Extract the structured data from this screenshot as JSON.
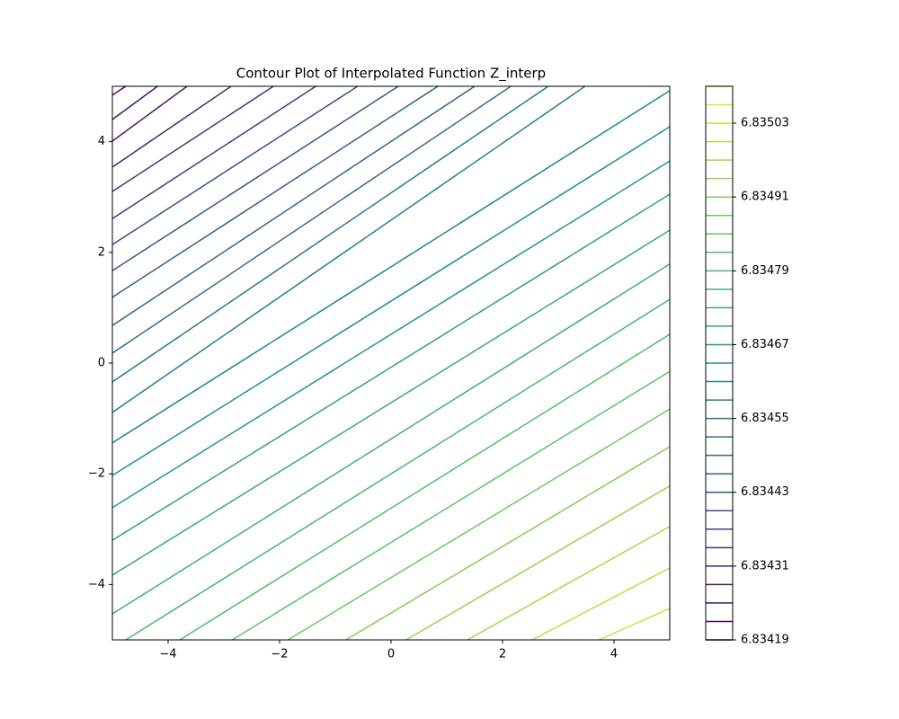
{
  "chart_data": {
    "type": "contour",
    "title": "Contour Plot of Interpolated Function Z_interp",
    "colormap": "viridis",
    "xlim": [
      -5,
      5
    ],
    "ylim": [
      -5,
      5
    ],
    "xticks": [
      {
        "value": -4,
        "label": "−4"
      },
      {
        "value": -2,
        "label": "−2"
      },
      0,
      2,
      4
    ],
    "yticks": [
      {
        "value": -4,
        "label": "−4"
      },
      {
        "value": -2,
        "label": "−2"
      },
      0,
      2,
      4
    ],
    "levels": [
      6.83419,
      6.83422,
      6.83425,
      6.83428,
      6.83431,
      6.83434,
      6.83437,
      6.8344,
      6.83443,
      6.83446,
      6.83449,
      6.83452,
      6.83455,
      6.83458,
      6.83461,
      6.83464,
      6.83467,
      6.8347,
      6.83473,
      6.83476,
      6.83479,
      6.83482,
      6.83485,
      6.83488,
      6.83491,
      6.83494,
      6.83497,
      6.835,
      6.83503,
      6.83506,
      6.83509
    ],
    "lines": [
      null,
      {
        "x": [
          -5,
          -4.76
        ],
        "y": [
          4.84,
          5
        ]
      },
      {
        "x": [
          -5,
          -4.19
        ],
        "y": [
          4.4,
          5
        ]
      },
      {
        "x": [
          -5,
          -3.66
        ],
        "y": [
          4.01,
          5
        ]
      },
      {
        "x": [
          -5,
          -2.87
        ],
        "y": [
          3.54,
          5
        ]
      },
      {
        "x": [
          -5,
          -2.11
        ],
        "y": [
          3.1,
          5
        ]
      },
      {
        "x": [
          -5,
          -1.35
        ],
        "y": [
          2.61,
          5
        ]
      },
      {
        "x": [
          -5,
          -0.6
        ],
        "y": [
          2.14,
          5
        ]
      },
      {
        "x": [
          -5,
          0.13
        ],
        "y": [
          1.67,
          5
        ]
      },
      {
        "x": [
          -5,
          0.84
        ],
        "y": [
          1.19,
          5
        ]
      },
      {
        "x": [
          -5,
          1.5
        ],
        "y": [
          0.68,
          5
        ]
      },
      {
        "x": [
          -5,
          2.15
        ],
        "y": [
          0.18,
          5
        ]
      },
      {
        "x": [
          -5,
          2.82
        ],
        "y": [
          -0.34,
          5
        ]
      },
      {
        "x": [
          -5,
          3.48
        ],
        "y": [
          -0.89,
          5
        ]
      },
      {
        "x": [
          -5,
          5
        ],
        "y": [
          -1.44,
          4.92
        ]
      },
      {
        "x": [
          -5,
          5
        ],
        "y": [
          -2.03,
          4.27
        ]
      },
      {
        "x": [
          -5,
          5
        ],
        "y": [
          -2.61,
          3.65
        ]
      },
      {
        "x": [
          -5,
          5
        ],
        "y": [
          -3.2,
          3.05
        ]
      },
      {
        "x": [
          -5,
          5
        ],
        "y": [
          -3.83,
          2.4
        ]
      },
      {
        "x": [
          -5,
          5
        ],
        "y": [
          -4.53,
          1.79
        ]
      },
      {
        "x": [
          -4.76,
          5
        ],
        "y": [
          -5,
          1.15
        ]
      },
      {
        "x": [
          -3.79,
          5
        ],
        "y": [
          -5,
          0.52
        ]
      },
      {
        "x": [
          -2.85,
          5
        ],
        "y": [
          -5,
          -0.15
        ]
      },
      {
        "x": [
          -1.85,
          5
        ],
        "y": [
          -5,
          -0.83
        ]
      },
      {
        "x": [
          -0.81,
          5
        ],
        "y": [
          -5,
          -1.51
        ]
      },
      {
        "x": [
          0.27,
          5
        ],
        "y": [
          -5,
          -2.22
        ]
      },
      {
        "x": [
          1.37,
          5
        ],
        "y": [
          -5,
          -2.95
        ]
      },
      {
        "x": [
          2.53,
          5
        ],
        "y": [
          -5,
          -3.7
        ]
      },
      {
        "x": [
          3.73,
          5
        ],
        "y": [
          -5,
          -4.43
        ]
      },
      null,
      null
    ],
    "colorbar_lim": [
      6.83419,
      6.83509
    ],
    "colorbar_ticks": [
      6.83419,
      6.83431,
      6.83443,
      6.83455,
      6.83467,
      6.83479,
      6.83491,
      6.83503
    ]
  }
}
